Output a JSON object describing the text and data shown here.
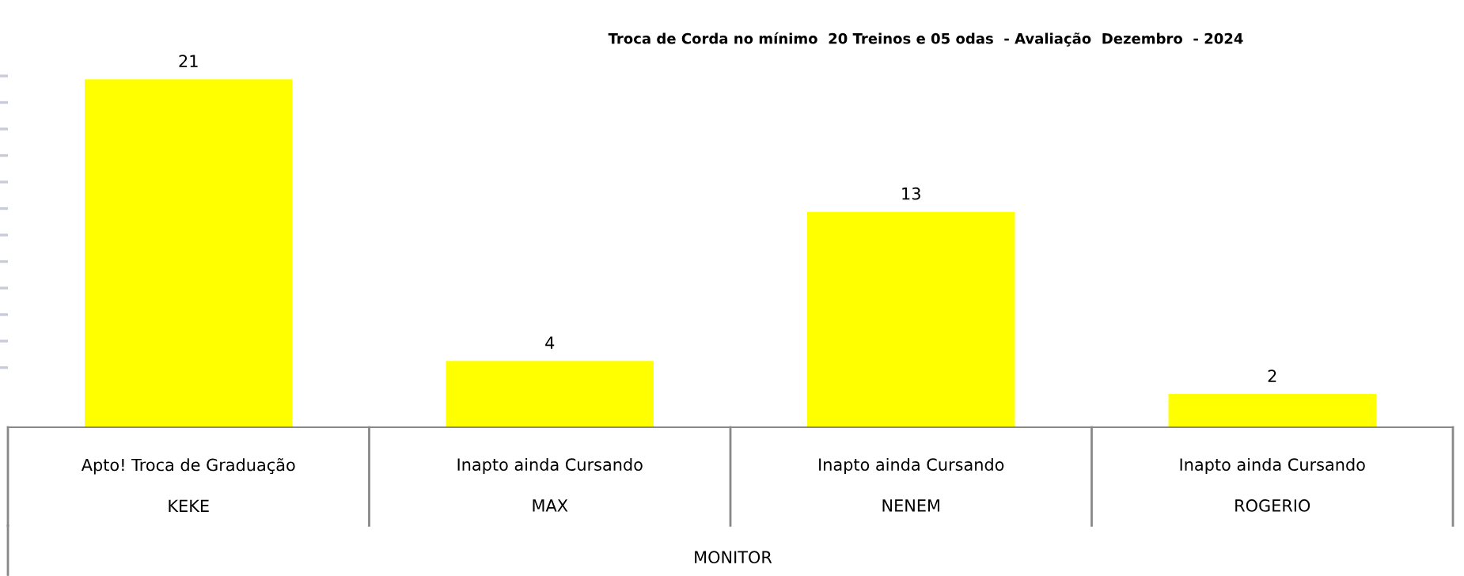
{
  "chart_data": {
    "type": "bar",
    "title": "Troca de Corda no mínimo  20 Treinos e 05 odas  - Avaliação  Dezembro  - 2024",
    "categories": [
      "Apto! Troca de Graduação\nKEKE",
      "Inapto ainda Cursando\nMAX",
      "Inapto ainda Cursando\nNENEM",
      "Inapto ainda Cursando\nROGERIO"
    ],
    "values": [
      21,
      4,
      13,
      2
    ],
    "color": "#ffff00",
    "annotations": [
      "MONITOR"
    ],
    "ylim": [
      0,
      21.2
    ],
    "yticks": [
      {
        "value": 3.6,
        "label": null
      },
      {
        "value": 5.2,
        "label": null
      },
      {
        "value": 6.8,
        "label": null
      },
      {
        "value": 8.4,
        "label": null
      },
      {
        "value": 10,
        "label": null
      },
      {
        "value": 11.6,
        "label": null
      },
      {
        "value": 13.2,
        "label": null
      },
      {
        "value": 14.8,
        "label": null
      },
      {
        "value": 16.4,
        "label": null
      },
      {
        "value": 18,
        "label": null
      },
      {
        "value": 19.6,
        "label": null
      },
      {
        "value": 21.2,
        "label": null
      }
    ],
    "tick_labels": "x",
    "data_labels": true,
    "grid": false,
    "legend": false
  }
}
